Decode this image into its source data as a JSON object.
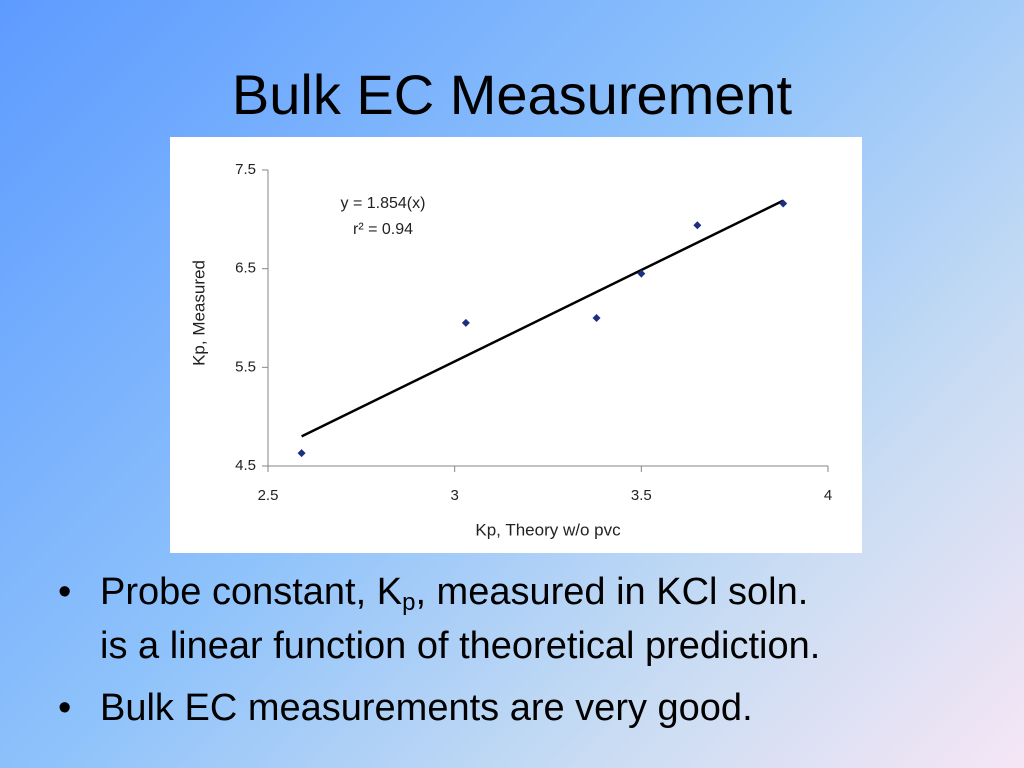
{
  "slide": {
    "title": "Bulk EC Measurement",
    "bullets": [
      {
        "text": "Probe constant, K",
        "subscript": "p",
        "text2": ", measured in KCl soln.",
        "text3": "is a linear function of theoretical prediction."
      },
      {
        "text": "Bulk EC measurements are very good."
      }
    ]
  },
  "chart_data": {
    "type": "scatter",
    "x_label": "Kp, Theory w/o pvc",
    "y_label": "Kp, Measured",
    "annotations": [
      "y = 1.854(x)",
      "r² = 0.94"
    ],
    "series": [
      {
        "color": "#1c2f80",
        "x": [
          2.59,
          3.03,
          3.38,
          3.5,
          3.65,
          3.88
        ],
        "values": [
          4.63,
          5.95,
          6.0,
          6.45,
          6.94,
          7.16
        ]
      }
    ],
    "trendline": {
      "color": "#000000",
      "x": [
        2.59,
        3.88
      ],
      "values": [
        4.8,
        7.19
      ]
    },
    "xlim": [
      2.5,
      4
    ],
    "xticks": [
      2.5,
      3,
      3.5,
      4
    ],
    "ylim": [
      4.5,
      7.5
    ],
    "yticks": [
      4.5,
      5.5,
      6.5,
      7.5
    ],
    "grid": false
  }
}
